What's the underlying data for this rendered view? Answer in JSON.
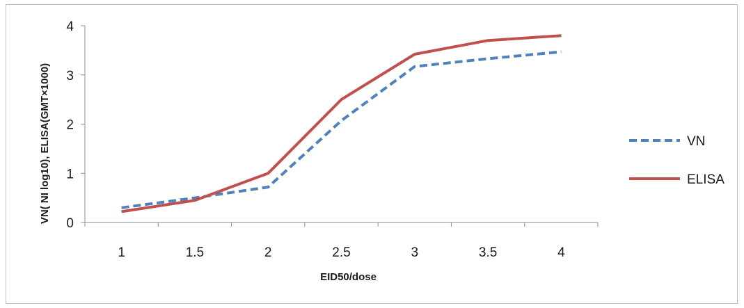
{
  "chart_data": {
    "type": "line",
    "xlabel": "EID50/dose",
    "ylabel": "VN( NI log10), ELISA(GMT×1000)",
    "categories": [
      "1",
      "1.5",
      "2",
      "2.5",
      "3",
      "3.5",
      "4"
    ],
    "x": [
      1,
      1.5,
      2,
      2.5,
      3,
      3.5,
      4
    ],
    "ylim": [
      0,
      4
    ],
    "yticks": [
      "0",
      "1",
      "2",
      "3",
      "4"
    ],
    "grid": false,
    "legend_position": "right",
    "series": [
      {
        "name": "VN",
        "values": [
          0.3,
          0.5,
          0.72,
          2.07,
          3.17,
          3.33,
          3.47
        ],
        "color": "#4f81bd",
        "style": "dashed"
      },
      {
        "name": "ELISA",
        "values": [
          0.22,
          0.45,
          1.0,
          2.5,
          3.42,
          3.7,
          3.8
        ],
        "color": "#c0504d",
        "style": "solid"
      }
    ]
  }
}
